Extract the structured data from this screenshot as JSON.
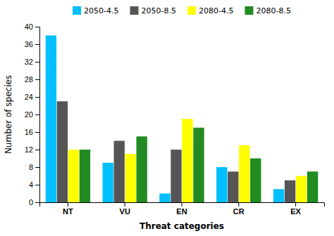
{
  "chart_data": {
    "type": "bar",
    "xlabel": "Threat categories",
    "ylabel": "Number of species",
    "categories": [
      "NT",
      "VU",
      "EN",
      "CR",
      "EX"
    ],
    "series": [
      {
        "name": "2050-4.5",
        "color": "#00BFFF",
        "values": [
          38,
          9,
          2,
          8,
          3
        ]
      },
      {
        "name": "2050-8.5",
        "color": "#555555",
        "values": [
          23,
          14,
          12,
          7,
          5
        ]
      },
      {
        "name": "2080-4.5",
        "color": "#FFFF00",
        "values": [
          12,
          11,
          19,
          13,
          6
        ]
      },
      {
        "name": "2080-8.5",
        "color": "#228B22",
        "values": [
          12,
          15,
          17,
          10,
          7
        ]
      }
    ],
    "ylim": [
      0,
      40
    ],
    "yticks": [
      0,
      4,
      8,
      12,
      16,
      20,
      24,
      28,
      32,
      36,
      40
    ],
    "legend": "top",
    "grid": false
  }
}
